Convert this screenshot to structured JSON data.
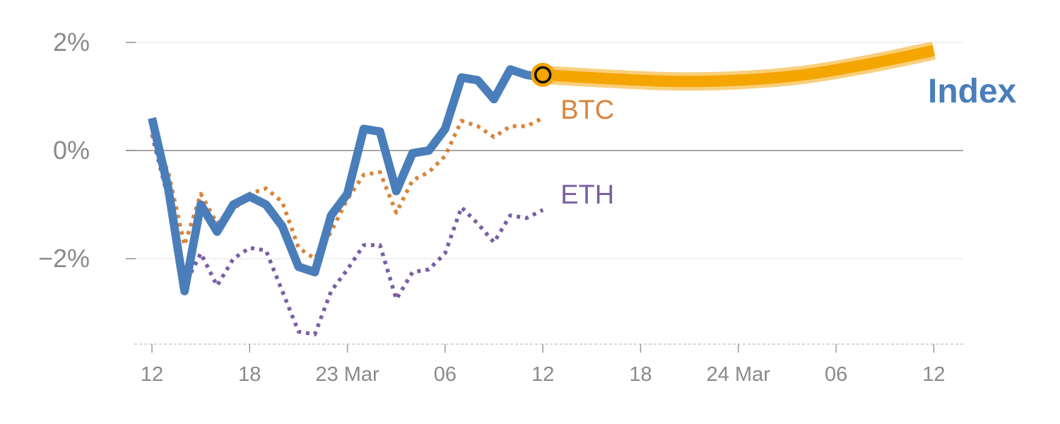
{
  "chart_data": {
    "type": "line",
    "title": "",
    "xlabel": "",
    "ylabel": "",
    "x_tick_labels": [
      "12",
      "18",
      "23 Mar",
      "06",
      "12",
      "18",
      "24 Mar",
      "06",
      "12"
    ],
    "y_tick_labels": [
      "2%",
      "0%",
      "−2%"
    ],
    "y_tick_values": [
      2,
      0,
      -2
    ],
    "ylim": [
      -3.6,
      2.8
    ],
    "grid": true,
    "series": [
      {
        "name": "Index",
        "color": "#4a7ebb",
        "style": "solid",
        "values": [
          0.6,
          -0.7,
          -2.6,
          -1.0,
          -1.5,
          -1.0,
          -0.85,
          -1.0,
          -1.4,
          -2.15,
          -2.25,
          -1.2,
          -0.8,
          0.4,
          0.35,
          -0.75,
          -0.05,
          0.0,
          0.4,
          1.35,
          1.3,
          0.95,
          1.5,
          1.4,
          1.35
        ]
      },
      {
        "name": "BTC",
        "color": "#d9843b",
        "style": "dotted",
        "values": [
          0.3,
          -0.4,
          -1.75,
          -0.8,
          -1.35,
          -1.1,
          -0.8,
          -0.7,
          -0.95,
          -1.8,
          -2.0,
          -1.5,
          -0.9,
          -0.45,
          -0.4,
          -1.15,
          -0.55,
          -0.4,
          -0.1,
          0.55,
          0.45,
          0.25,
          0.45,
          0.45,
          0.6
        ]
      },
      {
        "name": "ETH",
        "color": "#7a5ea4",
        "style": "dotted",
        "values": [
          0.3,
          -0.9,
          -2.5,
          -1.9,
          -2.5,
          -2.0,
          -1.8,
          -1.85,
          -2.6,
          -3.35,
          -3.4,
          -2.6,
          -2.2,
          -1.75,
          -1.75,
          -2.75,
          -2.25,
          -2.2,
          -1.9,
          -1.05,
          -1.35,
          -1.7,
          -1.2,
          -1.25,
          -1.1
        ]
      },
      {
        "name": "forecast",
        "color": "#f5a500",
        "style": "band",
        "values": [
          1.4,
          1.33,
          1.28,
          1.3,
          1.4,
          1.6,
          1.85
        ]
      }
    ],
    "marker": {
      "series": "forecast",
      "index": 0
    }
  }
}
